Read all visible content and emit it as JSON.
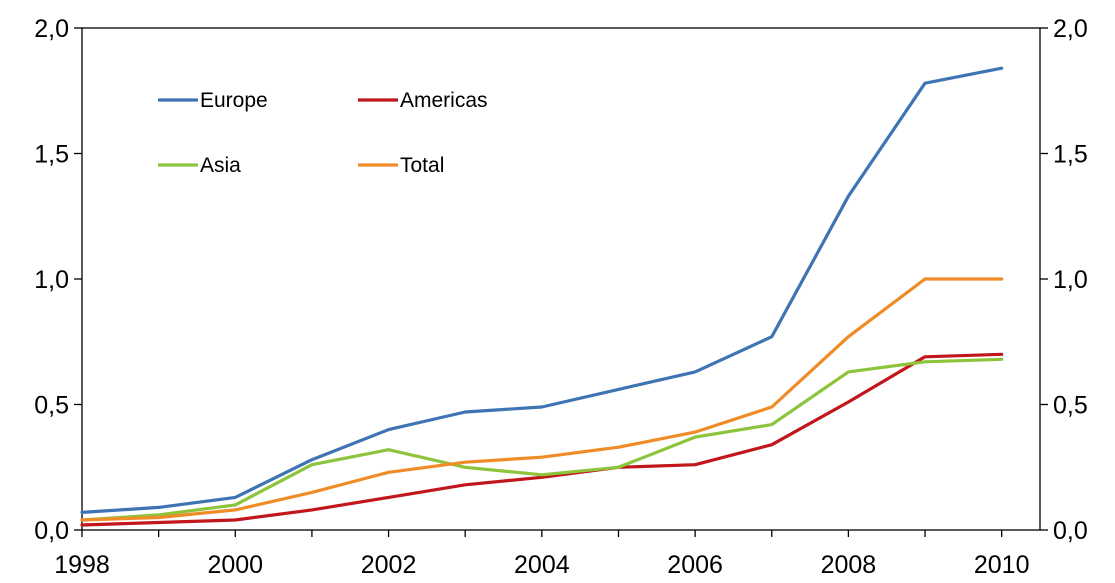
{
  "chart_data": {
    "type": "line",
    "x": [
      1998,
      1999,
      2000,
      2001,
      2002,
      2003,
      2004,
      2005,
      2006,
      2007,
      2008,
      2009,
      2010
    ],
    "x_tick_labels": [
      "1998",
      "2000",
      "2002",
      "2004",
      "2006",
      "2008",
      "2010"
    ],
    "y_tick_labels": [
      "0,0",
      "0,5",
      "1,0",
      "1,5",
      "2,0"
    ],
    "y_ticks": [
      0,
      0.5,
      1.0,
      1.5,
      2.0
    ],
    "ylim": [
      0,
      2.0
    ],
    "xlim": [
      1998,
      2010.5
    ],
    "grid": false,
    "legend_position": "top-left",
    "series": [
      {
        "name": "Europe",
        "color": "#3e74b4",
        "values": [
          0.07,
          0.09,
          0.13,
          0.28,
          0.4,
          0.47,
          0.49,
          0.56,
          0.63,
          0.77,
          1.33,
          1.78,
          1.84
        ]
      },
      {
        "name": "Americas",
        "color": "#c0161c",
        "values": [
          0.02,
          0.03,
          0.04,
          0.08,
          0.13,
          0.18,
          0.21,
          0.25,
          0.26,
          0.34,
          0.51,
          0.69,
          0.7
        ]
      },
      {
        "name": "Asia",
        "color": "#8cc43c",
        "values": [
          0.04,
          0.06,
          0.1,
          0.26,
          0.32,
          0.25,
          0.22,
          0.25,
          0.37,
          0.42,
          0.63,
          0.67,
          0.68
        ]
      },
      {
        "name": "Total",
        "color": "#f08c28",
        "values": [
          0.04,
          0.05,
          0.08,
          0.15,
          0.23,
          0.27,
          0.29,
          0.33,
          0.39,
          0.49,
          0.77,
          1.0,
          1.0
        ]
      }
    ]
  }
}
